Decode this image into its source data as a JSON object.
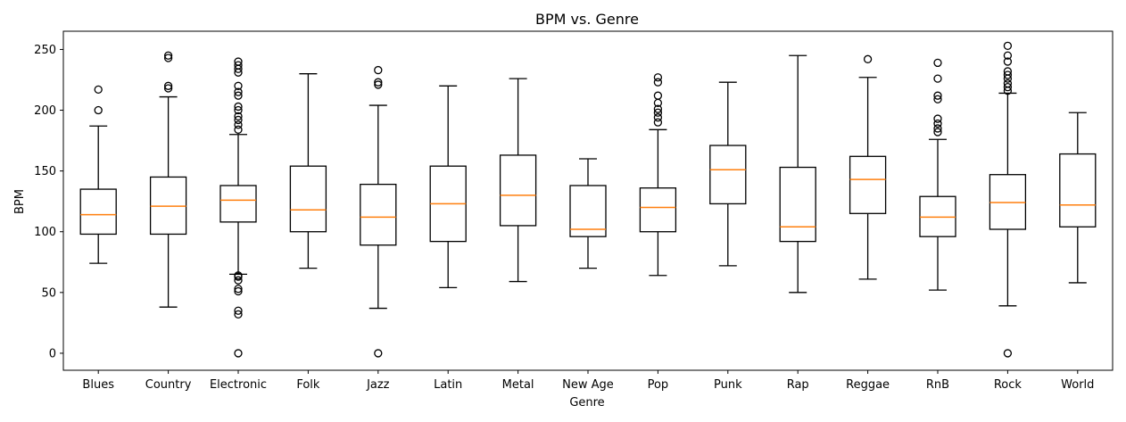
{
  "chart_data": {
    "type": "box",
    "title": "BPM vs. Genre",
    "xlabel": "Genre",
    "ylabel": "BPM",
    "ylim": [
      -14,
      265
    ],
    "yticks": [
      0,
      50,
      100,
      150,
      200,
      250
    ],
    "grid": false,
    "colors": {
      "box": "#000000",
      "median": "#ff7f0e",
      "background": "#ffffff"
    },
    "categories": [
      "Blues",
      "Country",
      "Electronic",
      "Folk",
      "Jazz",
      "Latin",
      "Metal",
      "New Age",
      "Pop",
      "Punk",
      "Rap",
      "Reggae",
      "RnB",
      "Rock",
      "World"
    ],
    "boxes": [
      {
        "genre": "Blues",
        "whisker_low": 74,
        "q1": 98,
        "median": 114,
        "q3": 135,
        "whisker_high": 187,
        "outliers": [
          200,
          217
        ]
      },
      {
        "genre": "Country",
        "whisker_low": 38,
        "q1": 98,
        "median": 121,
        "q3": 145,
        "whisker_high": 211,
        "outliers": [
          218,
          220,
          243,
          245
        ]
      },
      {
        "genre": "Electronic",
        "whisker_low": 65,
        "q1": 108,
        "median": 126,
        "q3": 138,
        "whisker_high": 180,
        "outliers": [
          0,
          32,
          35,
          51,
          53,
          60,
          63,
          64,
          184,
          188,
          192,
          195,
          200,
          203,
          212,
          215,
          220,
          231,
          234,
          237,
          240
        ]
      },
      {
        "genre": "Folk",
        "whisker_low": 70,
        "q1": 100,
        "median": 118,
        "q3": 154,
        "whisker_high": 230,
        "outliers": []
      },
      {
        "genre": "Jazz",
        "whisker_low": 37,
        "q1": 89,
        "median": 112,
        "q3": 139,
        "whisker_high": 204,
        "outliers": [
          0,
          221,
          223,
          233
        ]
      },
      {
        "genre": "Latin",
        "whisker_low": 54,
        "q1": 92,
        "median": 123,
        "q3": 154,
        "whisker_high": 220,
        "outliers": []
      },
      {
        "genre": "Metal",
        "whisker_low": 59,
        "q1": 105,
        "median": 130,
        "q3": 163,
        "whisker_high": 226,
        "outliers": []
      },
      {
        "genre": "New Age",
        "whisker_low": 70,
        "q1": 96,
        "median": 102,
        "q3": 138,
        "whisker_high": 160,
        "outliers": []
      },
      {
        "genre": "Pop",
        "whisker_low": 64,
        "q1": 100,
        "median": 120,
        "q3": 136,
        "whisker_high": 184,
        "outliers": [
          190,
          194,
          198,
          201,
          206,
          212,
          223,
          227
        ]
      },
      {
        "genre": "Punk",
        "whisker_low": 72,
        "q1": 123,
        "median": 151,
        "q3": 171,
        "whisker_high": 223,
        "outliers": []
      },
      {
        "genre": "Rap",
        "whisker_low": 50,
        "q1": 92,
        "median": 104,
        "q3": 153,
        "whisker_high": 245,
        "outliers": []
      },
      {
        "genre": "Reggae",
        "whisker_low": 61,
        "q1": 115,
        "median": 143,
        "q3": 162,
        "whisker_high": 227,
        "outliers": [
          242
        ]
      },
      {
        "genre": "RnB",
        "whisker_low": 52,
        "q1": 96,
        "median": 112,
        "q3": 129,
        "whisker_high": 176,
        "outliers": [
          182,
          185,
          189,
          193,
          209,
          212,
          226,
          239
        ]
      },
      {
        "genre": "Rock",
        "whisker_low": 39,
        "q1": 102,
        "median": 124,
        "q3": 147,
        "whisker_high": 214,
        "outliers": [
          0,
          216,
          219,
          222,
          226,
          229,
          232,
          240,
          245,
          253
        ]
      },
      {
        "genre": "World",
        "whisker_low": 58,
        "q1": 104,
        "median": 122,
        "q3": 164,
        "whisker_high": 198,
        "outliers": []
      }
    ]
  }
}
